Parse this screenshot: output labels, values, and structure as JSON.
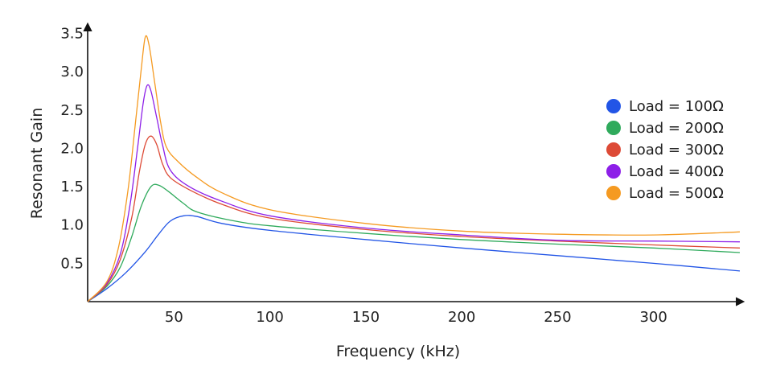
{
  "chart_data": {
    "type": "line",
    "xlabel": "Frequency (kHz)",
    "ylabel": "Resonant Gain",
    "xlim": [
      5,
      345
    ],
    "ylim": [
      0,
      3.6
    ],
    "x_ticks": [
      50,
      100,
      150,
      200,
      250,
      300
    ],
    "y_ticks": [
      0.5,
      1.0,
      1.5,
      2.0,
      2.5,
      3.0,
      3.5
    ],
    "x_tick_labels": [
      "50",
      "100",
      "150",
      "200",
      "250",
      "300"
    ],
    "y_tick_labels": [
      "0.5",
      "1.0",
      "1.5",
      "2.0",
      "2.5",
      "3.0",
      "3.5"
    ],
    "grid": false,
    "legend_position": "right",
    "series": [
      {
        "name": "Load = 100Ω",
        "color": "#2255e6",
        "points": [
          [
            5,
            0
          ],
          [
            15,
            0.17
          ],
          [
            25,
            0.38
          ],
          [
            35,
            0.65
          ],
          [
            42,
            0.88
          ],
          [
            48,
            1.05
          ],
          [
            55,
            1.12
          ],
          [
            62,
            1.11
          ],
          [
            75,
            1.02
          ],
          [
            100,
            0.93
          ],
          [
            150,
            0.81
          ],
          [
            200,
            0.7
          ],
          [
            250,
            0.6
          ],
          [
            300,
            0.5
          ],
          [
            345,
            0.4
          ]
        ]
      },
      {
        "name": "Load = 200Ω",
        "color": "#2faa5c",
        "points": [
          [
            5,
            0
          ],
          [
            15,
            0.2
          ],
          [
            22,
            0.45
          ],
          [
            28,
            0.85
          ],
          [
            33,
            1.25
          ],
          [
            38,
            1.5
          ],
          [
            42,
            1.52
          ],
          [
            47,
            1.44
          ],
          [
            55,
            1.28
          ],
          [
            62,
            1.17
          ],
          [
            80,
            1.06
          ],
          [
            100,
            0.99
          ],
          [
            150,
            0.89
          ],
          [
            200,
            0.81
          ],
          [
            250,
            0.75
          ],
          [
            300,
            0.7
          ],
          [
            345,
            0.64
          ]
        ]
      },
      {
        "name": "Load = 300Ω",
        "color": "#dd4a36",
        "points": [
          [
            5,
            0
          ],
          [
            15,
            0.22
          ],
          [
            22,
            0.55
          ],
          [
            28,
            1.1
          ],
          [
            32,
            1.7
          ],
          [
            35,
            2.05
          ],
          [
            38,
            2.16
          ],
          [
            41,
            2.05
          ],
          [
            44,
            1.8
          ],
          [
            48,
            1.62
          ],
          [
            58,
            1.46
          ],
          [
            75,
            1.27
          ],
          [
            100,
            1.09
          ],
          [
            150,
            0.94
          ],
          [
            200,
            0.85
          ],
          [
            250,
            0.79
          ],
          [
            300,
            0.74
          ],
          [
            345,
            0.7
          ]
        ]
      },
      {
        "name": "Load = 400Ω",
        "color": "#8d1fe8",
        "points": [
          [
            5,
            0
          ],
          [
            15,
            0.24
          ],
          [
            22,
            0.62
          ],
          [
            27,
            1.25
          ],
          [
            31,
            2.0
          ],
          [
            34,
            2.6
          ],
          [
            36,
            2.82
          ],
          [
            38,
            2.75
          ],
          [
            41,
            2.4
          ],
          [
            44,
            2.05
          ],
          [
            48,
            1.72
          ],
          [
            58,
            1.5
          ],
          [
            75,
            1.31
          ],
          [
            100,
            1.12
          ],
          [
            150,
            0.96
          ],
          [
            200,
            0.87
          ],
          [
            250,
            0.8
          ],
          [
            300,
            0.79
          ],
          [
            345,
            0.78
          ]
        ]
      },
      {
        "name": "Load = 500Ω",
        "color": "#f59a21",
        "points": [
          [
            5,
            0
          ],
          [
            15,
            0.26
          ],
          [
            21,
            0.7
          ],
          [
            26,
            1.45
          ],
          [
            30,
            2.35
          ],
          [
            33,
            3.05
          ],
          [
            35,
            3.45
          ],
          [
            37,
            3.35
          ],
          [
            40,
            2.85
          ],
          [
            43,
            2.35
          ],
          [
            46,
            2.02
          ],
          [
            52,
            1.83
          ],
          [
            62,
            1.62
          ],
          [
            75,
            1.42
          ],
          [
            100,
            1.2
          ],
          [
            150,
            1.02
          ],
          [
            200,
            0.92
          ],
          [
            250,
            0.88
          ],
          [
            300,
            0.87
          ],
          [
            345,
            0.91
          ]
        ]
      }
    ]
  }
}
